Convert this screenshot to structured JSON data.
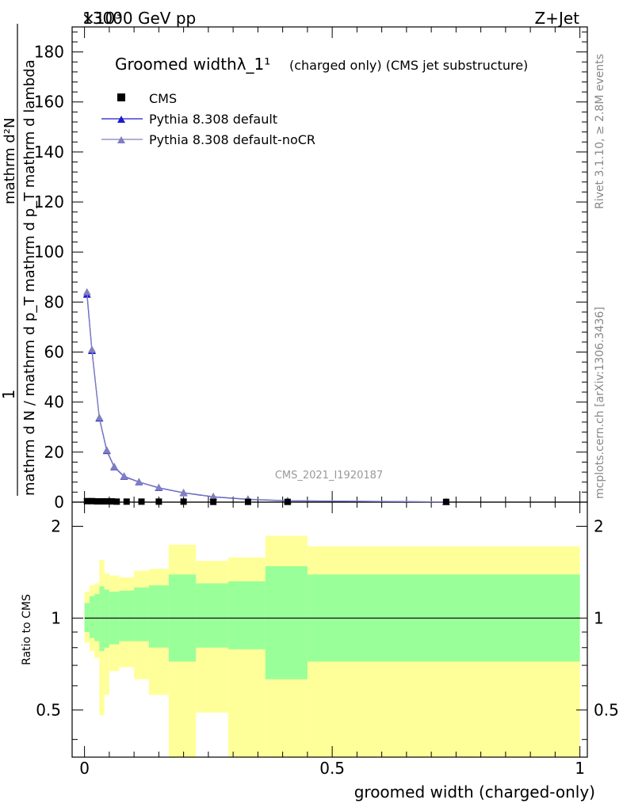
{
  "header": {
    "left": "13000 GeV pp",
    "right": "Z+Jet",
    "exponent": "×10³"
  },
  "side_labels": {
    "rivet": "Rivet 3.1.10, ≥ 2.8M events",
    "mcplots": "mcplots.cern.ch [arXiv:1306.3436]"
  },
  "watermark": "CMS_2021_I1920187",
  "colors": {
    "pythia_default": "#1a1acc",
    "pythia_nocr": "#7f7fbf",
    "band_inner": "#99ff99",
    "band_outer": "#ffff99",
    "data": "#000000"
  },
  "chart_data": [
    {
      "type": "line",
      "title": "Groomed widthλ_1¹",
      "title_suffix": "(charged only) (CMS jet substructure)",
      "ylabel_num": "1",
      "ylabel_den": "mathrm d N / mathrm d p_T mathrm d p_T mathrm d lambda",
      "ylabel_top": "mathrm d²N",
      "xlim": [
        -0.025,
        1.015
      ],
      "ylim": [
        0,
        190
      ],
      "y_scale_note": "×10³",
      "yticks": [
        0,
        20,
        40,
        60,
        80,
        100,
        120,
        140,
        160,
        180
      ],
      "legend_position": "top-left",
      "series": [
        {
          "name": "CMS",
          "marker": "square",
          "x": [
            0.005,
            0.015,
            0.025,
            0.035,
            0.045,
            0.055,
            0.065,
            0.085,
            0.115,
            0.15,
            0.2,
            0.26,
            0.33,
            0.41,
            0.73
          ],
          "y": [
            0.4,
            0.4,
            0.3,
            0.3,
            0.3,
            0.3,
            0.2,
            0.2,
            0.2,
            0.2,
            0.2,
            0.1,
            0.1,
            0.1,
            0.1
          ]
        },
        {
          "name": "Pythia 8.308 default",
          "marker": "triangle",
          "x": [
            0.005,
            0.015,
            0.03,
            0.045,
            0.06,
            0.08,
            0.11,
            0.15,
            0.2,
            0.26,
            0.33,
            0.41,
            0.73
          ],
          "y": [
            83,
            60.5,
            33.5,
            20.5,
            14,
            10.2,
            8,
            5.7,
            3.7,
            2.1,
            1.1,
            0.5,
            0.1
          ]
        },
        {
          "name": "Pythia 8.308 default-noCR",
          "marker": "triangle",
          "x": [
            0.005,
            0.015,
            0.03,
            0.045,
            0.06,
            0.08,
            0.11,
            0.15,
            0.2,
            0.26,
            0.33,
            0.41,
            0.73
          ],
          "y": [
            84,
            61,
            33.8,
            20.8,
            14.2,
            10.4,
            8.1,
            5.8,
            3.8,
            2.2,
            1.2,
            0.6,
            0.1
          ]
        }
      ]
    },
    {
      "type": "area",
      "ylabel": "Ratio to CMS",
      "xlabel": "groomed width (charged-only)",
      "xlim": [
        -0.025,
        1.015
      ],
      "ylim": [
        0.35,
        2.4
      ],
      "y_scale": "log",
      "yticks": [
        0.5,
        1,
        2
      ],
      "xticks": [
        0,
        0.5,
        1
      ],
      "reference_line": 1,
      "bins": [
        {
          "x0": 0.0,
          "x1": 0.01,
          "inner": [
            0.9,
            1.12
          ],
          "outer": [
            0.83,
            1.22
          ]
        },
        {
          "x0": 0.01,
          "x1": 0.02,
          "inner": [
            0.86,
            1.18
          ],
          "outer": [
            0.78,
            1.28
          ]
        },
        {
          "x0": 0.02,
          "x1": 0.03,
          "inner": [
            0.84,
            1.2
          ],
          "outer": [
            0.74,
            1.3
          ]
        },
        {
          "x0": 0.03,
          "x1": 0.04,
          "inner": [
            0.78,
            1.27
          ],
          "outer": [
            0.48,
            1.55
          ]
        },
        {
          "x0": 0.04,
          "x1": 0.05,
          "inner": [
            0.8,
            1.24
          ],
          "outer": [
            0.56,
            1.4
          ]
        },
        {
          "x0": 0.05,
          "x1": 0.07,
          "inner": [
            0.82,
            1.22
          ],
          "outer": [
            0.67,
            1.38
          ]
        },
        {
          "x0": 0.07,
          "x1": 0.1,
          "inner": [
            0.84,
            1.23
          ],
          "outer": [
            0.69,
            1.36
          ]
        },
        {
          "x0": 0.1,
          "x1": 0.13,
          "inner": [
            0.84,
            1.26
          ],
          "outer": [
            0.63,
            1.43
          ]
        },
        {
          "x0": 0.13,
          "x1": 0.17,
          "inner": [
            0.8,
            1.28
          ],
          "outer": [
            0.56,
            1.45
          ]
        },
        {
          "x0": 0.17,
          "x1": 0.225,
          "inner": [
            0.72,
            1.39
          ],
          "outer": [
            0.35,
            1.74
          ]
        },
        {
          "x0": 0.225,
          "x1": 0.29,
          "inner": [
            0.8,
            1.3
          ],
          "outer": [
            0.49,
            1.54
          ]
        },
        {
          "x0": 0.29,
          "x1": 0.365,
          "inner": [
            0.79,
            1.32
          ],
          "outer": [
            0.35,
            1.58
          ]
        },
        {
          "x0": 0.365,
          "x1": 0.45,
          "inner": [
            0.63,
            1.48
          ],
          "outer": [
            0.35,
            1.86
          ]
        },
        {
          "x0": 0.45,
          "x1": 1.0,
          "inner": [
            0.72,
            1.39
          ],
          "outer": [
            0.35,
            1.72
          ]
        }
      ],
      "band_names": [
        "inner",
        "outer"
      ],
      "series": [
        {
          "name": "Pythia 8.308 default",
          "x": [
            0.005,
            0.015,
            0.03,
            0.045,
            0.06,
            0.08,
            0.11,
            0.15,
            0.2,
            0.26,
            0.33,
            0.41,
            0.73
          ],
          "y": [
            1,
            1,
            1,
            1,
            1,
            1,
            1,
            1,
            1,
            1,
            1,
            1,
            1
          ]
        }
      ]
    }
  ]
}
